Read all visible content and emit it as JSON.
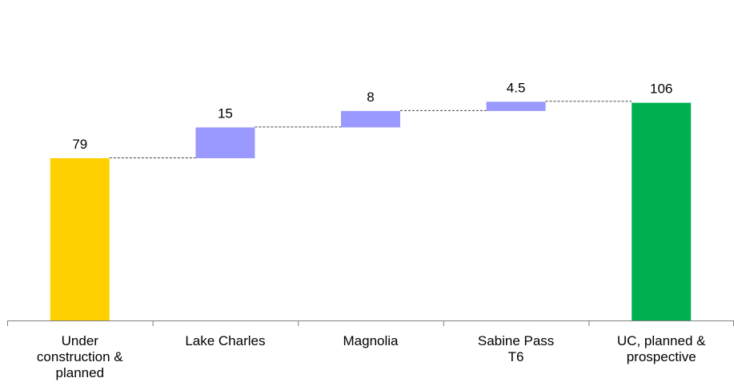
{
  "chart_data": {
    "type": "bar",
    "subtype": "waterfall",
    "title": "",
    "xlabel": "",
    "ylabel": "",
    "ylim": [
      0,
      106
    ],
    "grid": false,
    "legend": "none",
    "categories": [
      "Under construction & planned",
      "Lake Charles",
      "Magnolia",
      "Sabine Pass T6",
      "UC, planned & prospective"
    ],
    "category_lines": [
      [
        "Under",
        "construction &",
        "planned"
      ],
      [
        "Lake Charles"
      ],
      [
        "Magnolia"
      ],
      [
        "Sabine Pass",
        "T6"
      ],
      [
        "UC, planned &",
        "prospective"
      ]
    ],
    "bars": [
      {
        "kind": "total",
        "start": 0,
        "end": 79,
        "label": "79",
        "color": "#FFD000"
      },
      {
        "kind": "increment",
        "start": 79,
        "end": 94,
        "label": "15",
        "color": "#9999FF"
      },
      {
        "kind": "increment",
        "start": 94,
        "end": 102,
        "label": "8",
        "color": "#9999FF"
      },
      {
        "kind": "increment",
        "start": 102,
        "end": 106.5,
        "label": "4.5",
        "color": "#9999FF"
      },
      {
        "kind": "total",
        "start": 0,
        "end": 106,
        "label": "106",
        "color": "#00B050"
      }
    ],
    "connector_color": "#404040",
    "axis_color": "#808080"
  }
}
